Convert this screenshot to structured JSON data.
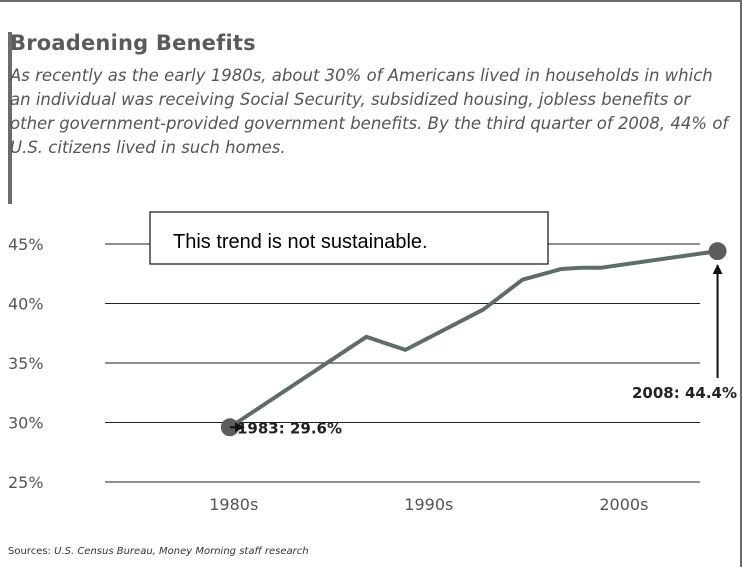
{
  "header": {
    "title": "Broadening Benefits",
    "subtitle": "As recently as the early 1980s, about 30% of Americans lived in households in which an individual was receiving Social Security, subsidized housing, jobless benefits or other government-provided government benefits. By the third quarter of 2008, 44% of U.S. citizens lived in such homes."
  },
  "callout": {
    "text": "This trend is not sustainable."
  },
  "footer": {
    "source_label": "Sources:",
    "source_text": "U.S. Census Bureau, Money Morning staff research"
  },
  "colors": {
    "line": "#5d6e67",
    "marker": "#5d5d5d",
    "grid": "#222222",
    "text": "#555555"
  },
  "chart_data": {
    "type": "line",
    "title": "Broadening Benefits",
    "xlabel": "",
    "ylabel": "",
    "x_ticks": [
      {
        "year": 1980,
        "label": "1980s"
      },
      {
        "year": 1990,
        "label": "1990s"
      },
      {
        "year": 2000,
        "label": "2000s"
      }
    ],
    "y_ticks": [
      "25%",
      "30%",
      "35%",
      "40%",
      "45%"
    ],
    "y_tick_values": [
      25,
      30,
      35,
      40,
      45
    ],
    "xlim": [
      1976.6,
      2007.1
    ],
    "ylim": [
      25,
      45
    ],
    "grid": "horizontal",
    "series": [
      {
        "x": [
          1983,
          1990,
          1992,
          1996,
          1998,
          2000,
          2001,
          2002,
          2008
        ],
        "y": [
          29.6,
          37.2,
          36.1,
          39.5,
          42.0,
          42.9,
          43.0,
          43.0,
          44.4
        ]
      }
    ],
    "annotations": [
      {
        "label": "1983: 29.6%",
        "x": 1983,
        "y": 29.6
      },
      {
        "label": "2008: 44.4%",
        "x": 2008,
        "y": 44.4
      }
    ]
  }
}
